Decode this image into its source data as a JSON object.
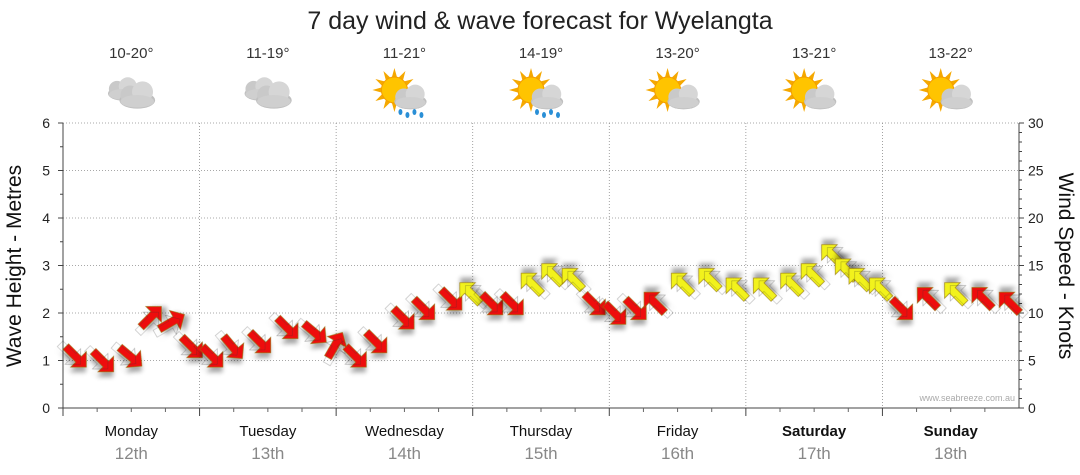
{
  "chart_data": {
    "type": "line",
    "title": "7 day wind & wave forecast for Wyelangta",
    "ylabel_left": "Wave Height - Metres",
    "ylabel_right": "Wind Speed - Knots",
    "ylim_left": [
      0,
      6
    ],
    "ylim_right": [
      0,
      30
    ],
    "yticks_left": [
      "0",
      "1",
      "2",
      "3",
      "4",
      "5",
      "6"
    ],
    "yticks_right": [
      "0",
      "5",
      "10",
      "15",
      "20",
      "25",
      "30"
    ],
    "grid": true,
    "days": [
      {
        "name": "Monday",
        "date": "12th",
        "temp": "10-20°",
        "weather": "cloudy",
        "bold": false
      },
      {
        "name": "Tuesday",
        "date": "13th",
        "temp": "11-19°",
        "weather": "cloudy",
        "bold": false
      },
      {
        "name": "Wednesday",
        "date": "14th",
        "temp": "11-21°",
        "weather": "partly-cloudy-showers",
        "bold": false
      },
      {
        "name": "Thursday",
        "date": "15th",
        "temp": "14-19°",
        "weather": "partly-cloudy-showers",
        "bold": false
      },
      {
        "name": "Friday",
        "date": "16th",
        "temp": "13-20°",
        "weather": "partly-cloudy",
        "bold": false
      },
      {
        "name": "Saturday",
        "date": "17th",
        "temp": "13-21°",
        "weather": "partly-cloudy",
        "bold": true
      },
      {
        "name": "Sunday",
        "date": "18th",
        "temp": "13-22°",
        "weather": "partly-cloudy",
        "bold": true
      }
    ],
    "series": [
      {
        "name": "Wind",
        "units": "knots",
        "t_days": [
          0.0,
          0.2,
          0.4,
          0.55,
          0.7,
          0.85,
          1.0,
          1.15,
          1.35,
          1.55,
          1.75,
          1.9,
          2.05,
          2.2,
          2.4,
          2.55,
          2.75,
          2.9,
          3.05,
          3.2,
          3.35,
          3.5,
          3.65,
          3.8,
          3.95,
          4.1,
          4.25,
          4.45,
          4.65,
          4.85,
          5.05,
          5.25,
          5.4,
          5.55,
          5.65,
          5.75,
          5.9,
          6.05,
          6.25,
          6.45,
          6.65,
          6.85
        ],
        "speed": [
          5.5,
          5,
          5.5,
          9.5,
          9,
          6.5,
          5.5,
          6.5,
          7,
          8.5,
          8,
          6.5,
          5.5,
          7,
          9.5,
          10.5,
          11.5,
          12,
          11,
          11,
          13,
          14,
          13.5,
          11,
          10,
          10.5,
          11,
          13,
          13.5,
          12.5,
          12.5,
          13,
          14,
          16,
          14.5,
          13.5,
          12.5,
          10.5,
          11.5,
          12,
          11.5,
          11
        ],
        "direction_deg": [
          45,
          45,
          40,
          315,
          330,
          45,
          45,
          50,
          45,
          45,
          40,
          300,
          45,
          45,
          45,
          45,
          45,
          225,
          45,
          45,
          225,
          225,
          225,
          45,
          45,
          45,
          225,
          225,
          225,
          225,
          225,
          225,
          225,
          225,
          225,
          225,
          225,
          45,
          225,
          225,
          225,
          225
        ],
        "color_by_speed": {
          "below_12": "#ee1111",
          "12_and_above": "#f2f21c"
        }
      }
    ],
    "watermark": "www.seabreeze.com.au"
  }
}
